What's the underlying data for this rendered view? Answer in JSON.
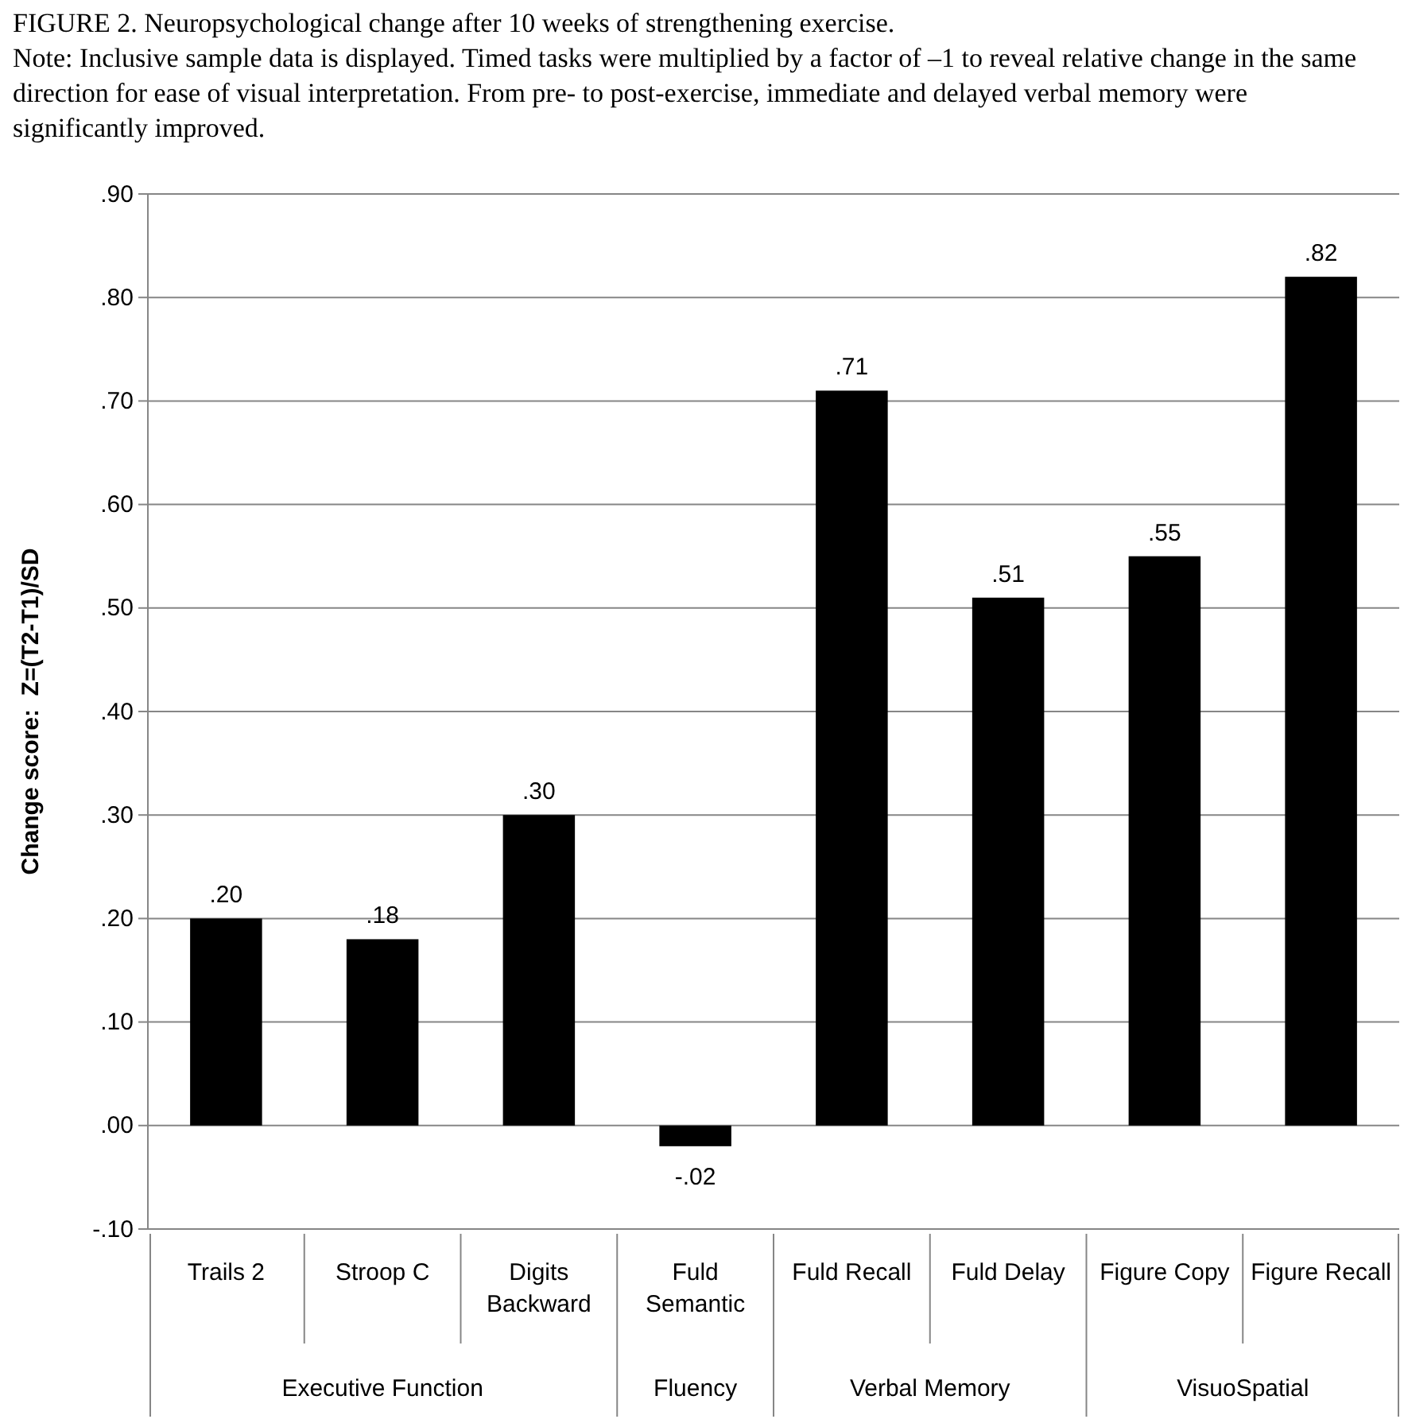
{
  "chart_data": {
    "type": "bar",
    "title": "FIGURE 2. Neuropsychological change after 10 weeks of strengthening exercise.",
    "subtitle": "Note: Inclusive sample data is displayed. Timed tasks were multiplied by a factor of –1 to reveal relative change in the same direction for ease of visual interpretation. From pre- to post-exercise, immediate and delayed verbal memory were significantly improved.",
    "ylabel": "Change score:  Z=(T2-T1)/SD",
    "categories": [
      "Trails 2",
      "Stroop C",
      "Digits Backward",
      "Fuld Semantic",
      "Fuld Recall",
      "Fuld Delay",
      "Figure Copy",
      "Figure Recall"
    ],
    "values": [
      0.2,
      0.18,
      0.3,
      -0.02,
      0.71,
      0.51,
      0.55,
      0.82
    ],
    "value_labels": [
      ".20",
      ".18",
      ".30",
      "-.02",
      ".71",
      ".51",
      ".55",
      ".82"
    ],
    "color": "#000000",
    "ylim": [
      -0.1,
      0.9
    ],
    "yticks": [
      {
        "value": -0.1,
        "label": "-.10"
      },
      {
        "value": 0,
        "label": ".00"
      },
      {
        "value": 0.1,
        "label": ".10"
      },
      {
        "value": 0.2,
        "label": ".20"
      },
      {
        "value": 0.3,
        "label": ".30"
      },
      {
        "value": 0.4,
        "label": ".40"
      },
      {
        "value": 0.5,
        "label": ".50"
      },
      {
        "value": 0.6,
        "label": ".60"
      },
      {
        "value": 0.7,
        "label": ".70"
      },
      {
        "value": 0.8,
        "label": ".80"
      },
      {
        "value": 0.9,
        "label": ".90"
      }
    ],
    "grid": "y",
    "annotations": [
      "Executive Function",
      "Fluency",
      "Verbal Memory",
      "VisuoSpatial"
    ]
  }
}
